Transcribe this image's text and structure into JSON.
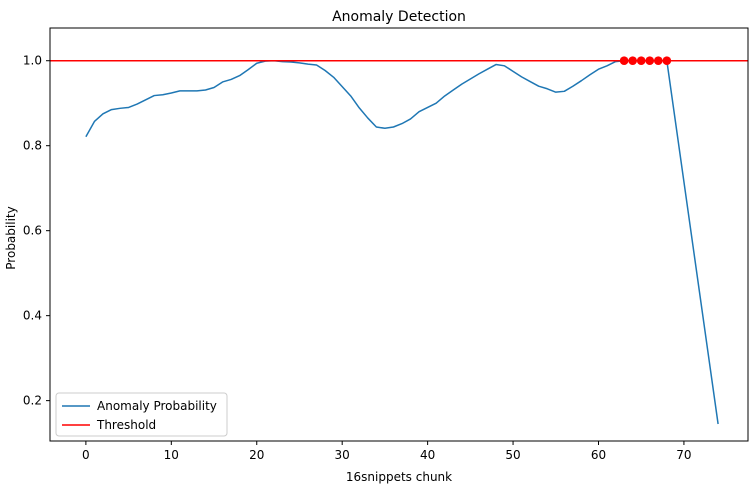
{
  "chart_data": {
    "type": "line",
    "title": "Anomaly Detection",
    "xlabel": "16snippets chunk",
    "ylabel": "Probability",
    "xlim": [
      -4.2,
      77.5
    ],
    "ylim": [
      0.105,
      1.077
    ],
    "xticks": [
      0,
      10,
      20,
      30,
      40,
      50,
      60,
      70
    ],
    "yticks": [
      0.2,
      0.4,
      0.6,
      0.8,
      1.0
    ],
    "ytick_labels": [
      "0.2",
      "0.4",
      "0.6",
      "0.8",
      "1.0"
    ],
    "grid": false,
    "legend_position": "lower-left",
    "threshold": 1.0,
    "series": [
      {
        "name": "Anomaly Probability",
        "color": "#1f77b4",
        "x": [
          0,
          1,
          2,
          3,
          4,
          5,
          6,
          7,
          8,
          9,
          10,
          11,
          12,
          13,
          14,
          15,
          16,
          17,
          18,
          19,
          20,
          21,
          22,
          23,
          24,
          25,
          26,
          27,
          28,
          29,
          30,
          31,
          32,
          33,
          34,
          35,
          36,
          37,
          38,
          39,
          40,
          41,
          42,
          43,
          44,
          45,
          46,
          47,
          48,
          49,
          50,
          51,
          52,
          53,
          54,
          55,
          56,
          57,
          58,
          59,
          60,
          61,
          62,
          63,
          64,
          65,
          66,
          67,
          68,
          74
        ],
        "y": [
          0.821,
          0.857,
          0.875,
          0.885,
          0.888,
          0.89,
          0.898,
          0.908,
          0.918,
          0.92,
          0.924,
          0.929,
          0.929,
          0.929,
          0.931,
          0.937,
          0.95,
          0.956,
          0.965,
          0.979,
          0.994,
          0.999,
          1.0,
          0.998,
          0.997,
          0.995,
          0.992,
          0.99,
          0.977,
          0.961,
          0.939,
          0.917,
          0.889,
          0.865,
          0.844,
          0.841,
          0.844,
          0.852,
          0.863,
          0.88,
          0.89,
          0.9,
          0.917,
          0.931,
          0.945,
          0.957,
          0.969,
          0.98,
          0.991,
          0.988,
          0.975,
          0.962,
          0.951,
          0.94,
          0.934,
          0.926,
          0.928,
          0.94,
          0.953,
          0.967,
          0.98,
          0.988,
          0.998,
          1.0,
          1.0,
          1.0,
          1.0,
          1.0,
          1.0,
          0.145
        ]
      },
      {
        "name": "Threshold",
        "color": "#ff0000",
        "type": "hline",
        "y": 1.0
      },
      {
        "name": "Anomalies",
        "color": "#ff0000",
        "type": "scatter",
        "x": [
          63,
          64,
          65,
          66,
          67,
          68
        ],
        "y": [
          1.0,
          1.0,
          1.0,
          1.0,
          1.0,
          1.0
        ]
      }
    ]
  }
}
